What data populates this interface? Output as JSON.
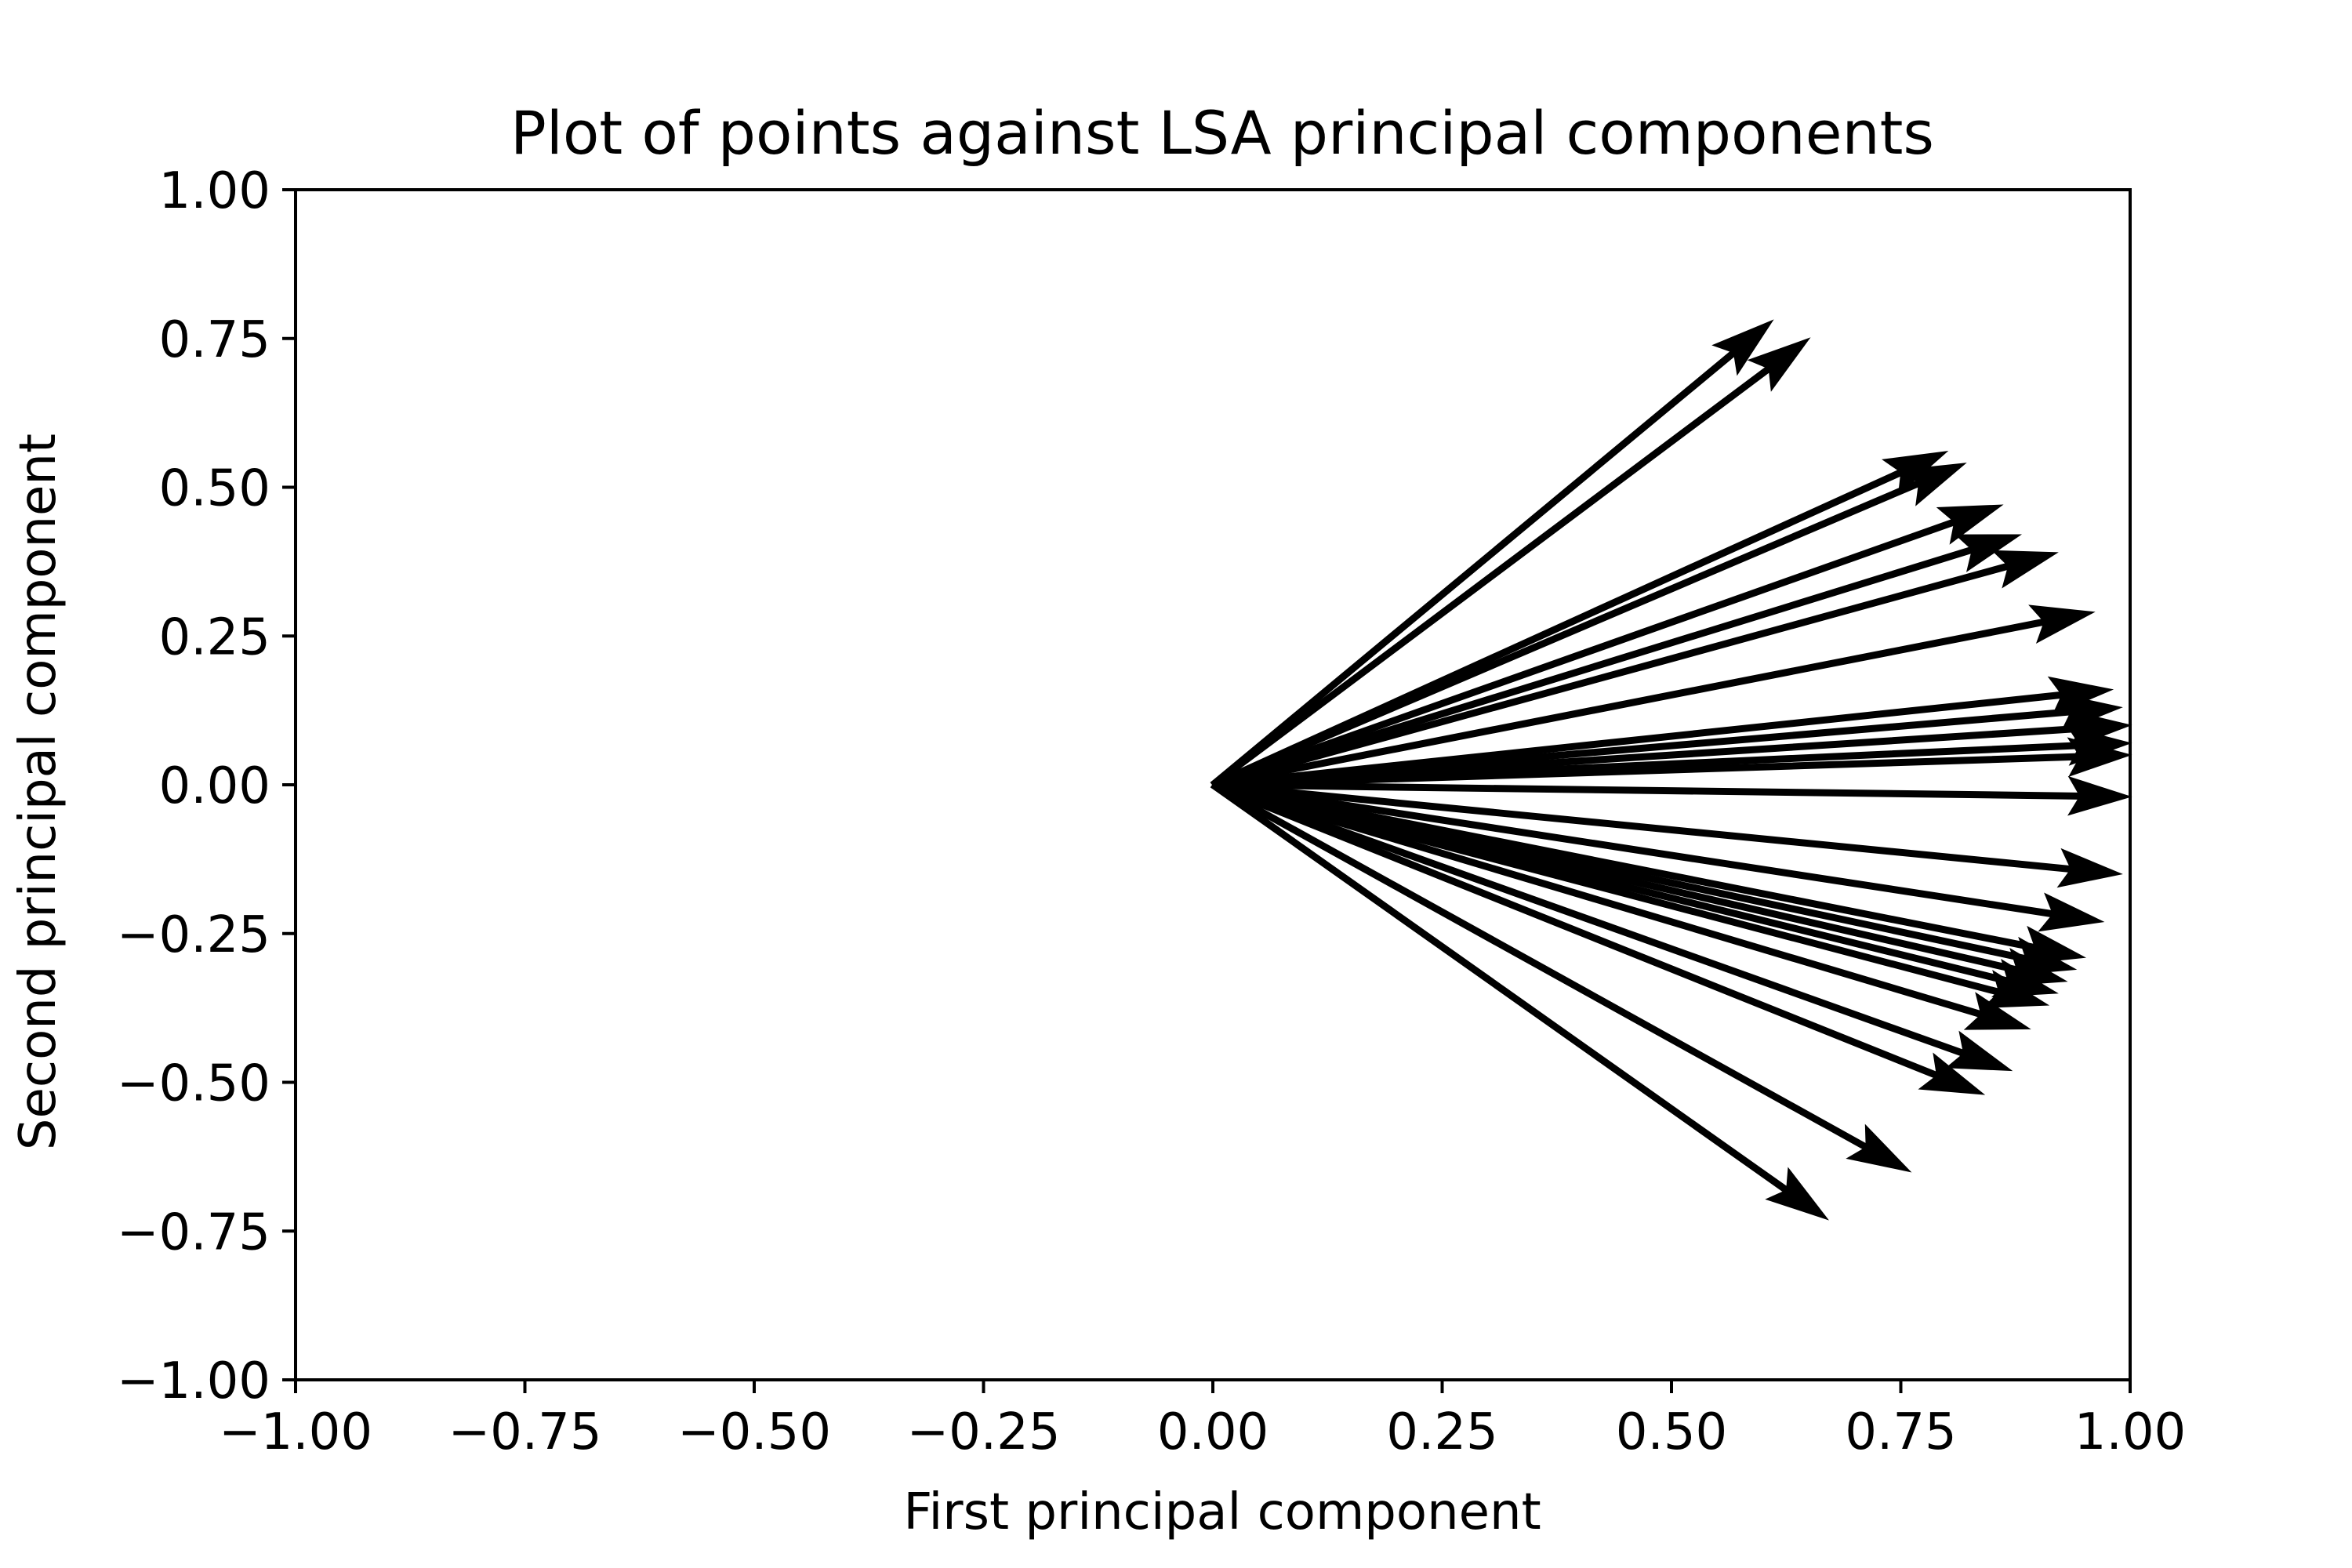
{
  "chart_data": {
    "type": "quiver",
    "title": "Plot of points against LSA principal components",
    "xlabel": "First principal component",
    "ylabel": "Second principal component",
    "xlim": [
      -1.0,
      1.0
    ],
    "ylim": [
      -1.0,
      1.0
    ],
    "xticks": [
      "−1.00",
      "−0.75",
      "−0.50",
      "−0.25",
      "0.00",
      "0.25",
      "0.50",
      "0.75",
      "1.00"
    ],
    "yticks": [
      "1.00",
      "0.75",
      "0.50",
      "0.25",
      "0.00",
      "−0.25",
      "−0.50",
      "−0.75",
      "−1.00"
    ],
    "grid": false,
    "color": "#000000",
    "origin": [
      0,
      0
    ],
    "vectors": [
      {
        "x": 0.61,
        "y": 0.78
      },
      {
        "x": 0.65,
        "y": 0.75
      },
      {
        "x": 0.8,
        "y": 0.56
      },
      {
        "x": 0.82,
        "y": 0.54
      },
      {
        "x": 0.86,
        "y": 0.47
      },
      {
        "x": 0.88,
        "y": 0.42
      },
      {
        "x": 0.92,
        "y": 0.39
      },
      {
        "x": 0.96,
        "y": 0.29
      },
      {
        "x": 0.98,
        "y": 0.16
      },
      {
        "x": 0.99,
        "y": 0.13
      },
      {
        "x": 1.0,
        "y": 0.1
      },
      {
        "x": 1.0,
        "y": 0.07
      },
      {
        "x": 1.0,
        "y": 0.05
      },
      {
        "x": 1.0,
        "y": -0.02
      },
      {
        "x": 0.99,
        "y": -0.15
      },
      {
        "x": 0.97,
        "y": -0.23
      },
      {
        "x": 0.95,
        "y": -0.29
      },
      {
        "x": 0.94,
        "y": -0.31
      },
      {
        "x": 0.93,
        "y": -0.33
      },
      {
        "x": 0.92,
        "y": -0.35
      },
      {
        "x": 0.91,
        "y": -0.37
      },
      {
        "x": 0.89,
        "y": -0.41
      },
      {
        "x": 0.87,
        "y": -0.48
      },
      {
        "x": 0.84,
        "y": -0.52
      },
      {
        "x": 0.76,
        "y": -0.65
      },
      {
        "x": 0.67,
        "y": -0.73
      }
    ]
  }
}
